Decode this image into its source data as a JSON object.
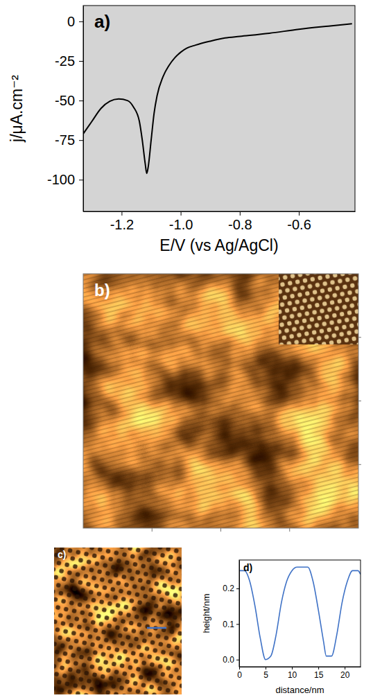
{
  "chart_data": [
    {
      "type": "line",
      "title": "a)",
      "xlabel": "E/V (vs Ag/AgCl)",
      "ylabel": "j/μA.cm⁻²",
      "x": [
        -1.33,
        -1.3,
        -1.27,
        -1.24,
        -1.21,
        -1.18,
        -1.16,
        -1.14,
        -1.13,
        -1.12,
        -1.115,
        -1.11,
        -1.1,
        -1.09,
        -1.08,
        -1.06,
        -1.04,
        -1.02,
        -1.0,
        -0.98,
        -0.95,
        -0.9,
        -0.85,
        -0.8,
        -0.7,
        -0.6,
        -0.5,
        -0.42
      ],
      "values": [
        -71,
        -63,
        -55,
        -50.5,
        -49,
        -50,
        -54,
        -63,
        -75,
        -90,
        -96,
        -92,
        -75,
        -58,
        -47,
        -35,
        -28,
        -23,
        -19.5,
        -17,
        -15,
        -12.5,
        -10.5,
        -9.5,
        -7.5,
        -5,
        -3,
        -1.5
      ],
      "color": "#000000",
      "xlim": [
        -1.33,
        -0.41
      ],
      "xticks": [
        -1.2,
        {
          "value": -1.0,
          "label": "-1.0"
        },
        -0.8,
        -0.6
      ],
      "ylim": [
        -120,
        10
      ],
      "yticks": [
        0,
        -25,
        -50,
        -75,
        -100
      ],
      "grid": false
    },
    {
      "type": "line",
      "title": "d)",
      "xlabel": "distance/nm",
      "ylabel": "height/nm",
      "x": [
        0,
        1,
        2,
        3,
        4,
        5,
        6,
        7,
        8,
        9,
        10,
        11,
        12,
        13,
        14,
        15,
        16,
        16.5,
        17.5,
        18.5,
        19.5,
        20.5,
        21.5,
        22.5,
        23
      ],
      "values": [
        0.25,
        0.25,
        0.22,
        0.15,
        0.06,
        0.0,
        0.01,
        0.07,
        0.16,
        0.22,
        0.25,
        0.26,
        0.26,
        0.26,
        0.22,
        0.14,
        0.05,
        0.01,
        0.01,
        0.07,
        0.16,
        0.22,
        0.25,
        0.25,
        0.24
      ],
      "color": "#3f72c6",
      "xlim": [
        0,
        23
      ],
      "xticks": [
        0,
        5,
        10,
        15,
        20
      ],
      "ylim": [
        -0.02,
        0.28
      ],
      "yticks": [
        {
          "value": 0,
          "label": "0.0"
        },
        0.1,
        0.2
      ],
      "grid": false
    }
  ],
  "images": [
    {
      "title": "b)"
    },
    {
      "title": "c)"
    }
  ]
}
